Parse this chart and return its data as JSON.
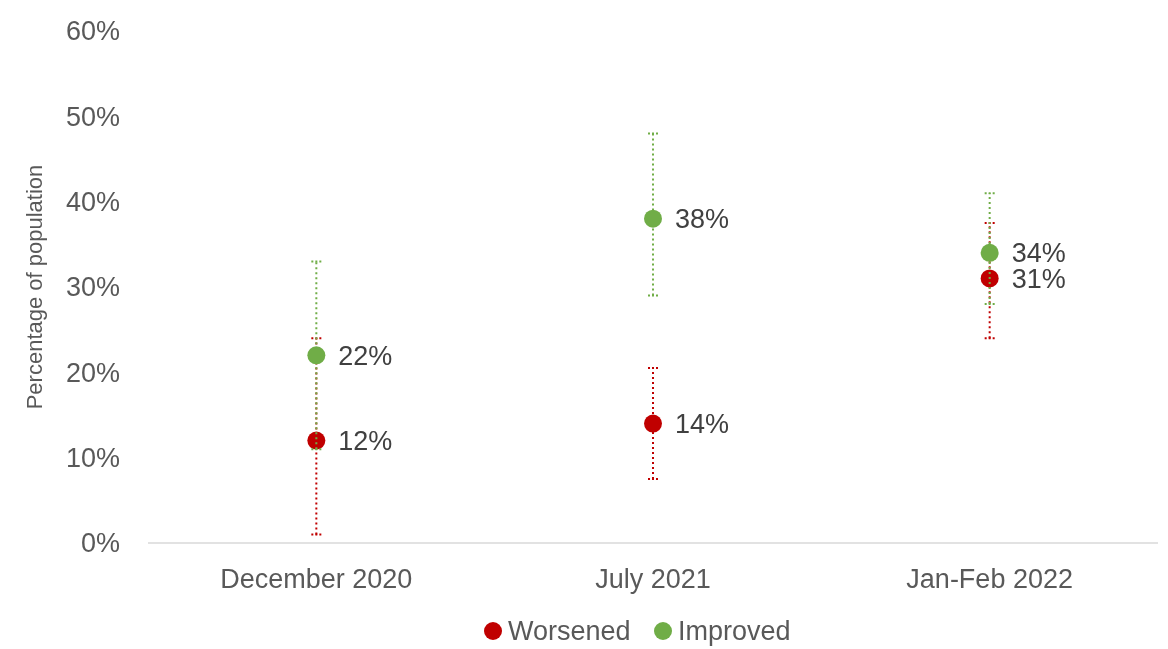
{
  "chart_data": {
    "type": "scatter",
    "ylabel": "Percentage of population",
    "categories": [
      "December 2020",
      "July 2021",
      "Jan-Feb 2022"
    ],
    "ylim": [
      0,
      60
    ],
    "yticks": [
      {
        "value": 0,
        "label": "0%"
      },
      {
        "value": 10,
        "label": "10%"
      },
      {
        "value": 20,
        "label": "20%"
      },
      {
        "value": 30,
        "label": "30%"
      },
      {
        "value": 40,
        "label": "40%"
      },
      {
        "value": 50,
        "label": "50%"
      },
      {
        "value": 60,
        "label": "60%"
      }
    ],
    "series": [
      {
        "name": "Worsened",
        "color": "#c00000",
        "values": [
          12,
          14,
          31
        ],
        "value_labels": [
          "12%",
          "14%",
          "31%"
        ],
        "errors": [
          [
            1,
            24
          ],
          [
            7.5,
            20.5
          ],
          [
            24,
            37.5
          ]
        ]
      },
      {
        "name": "Improved",
        "color": "#70ad47",
        "values": [
          22,
          38,
          34
        ],
        "value_labels": [
          "22%",
          "38%",
          "34%"
        ],
        "errors": [
          [
            11,
            33
          ],
          [
            29,
            48
          ],
          [
            28,
            41
          ]
        ]
      }
    ],
    "marker": "circle",
    "legend": "bottom",
    "grid": false
  }
}
